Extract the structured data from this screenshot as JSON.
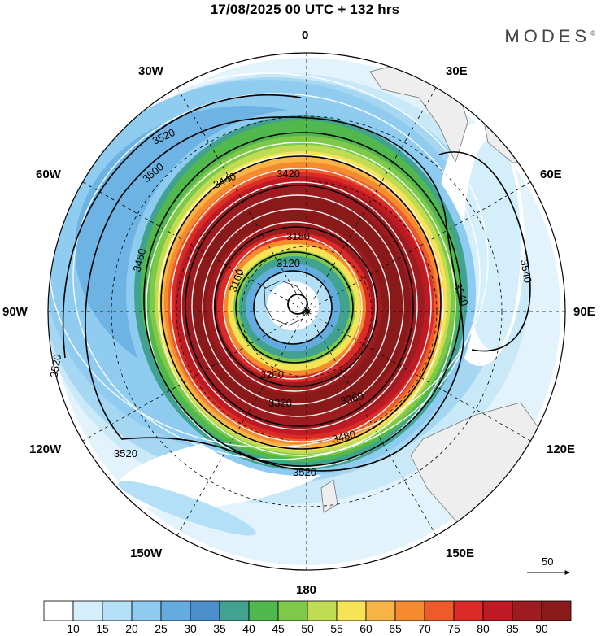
{
  "title": "17/08/2025  00 UTC  + 132 hrs",
  "brand": "MODES",
  "brand_mark": "©",
  "longitude_labels": {
    "lon_0": "0",
    "lon_30e": "30E",
    "lon_60e": "60E",
    "lon_90e": "90E",
    "lon_120e": "120E",
    "lon_150e": "150E",
    "lon_180": "180",
    "lon_150w": "150W",
    "lon_120w": "120W",
    "lon_90w": "90W",
    "lon_60w": "60W",
    "lon_30w": "30W"
  },
  "vector_reference": {
    "value": "50"
  },
  "colorbar": {
    "colors": [
      "#ffffff",
      "#d5eefb",
      "#b3e0f6",
      "#8ecbf0",
      "#64ace0",
      "#4a8fcc",
      "#41a38f",
      "#50b84c",
      "#7ec84a",
      "#c0dc52",
      "#f6e356",
      "#f9b445",
      "#f58a2f",
      "#ed5b2a",
      "#db2b28",
      "#bd1a24",
      "#9e1c20",
      "#8a1a1a"
    ],
    "labels": [
      "10",
      "15",
      "20",
      "25",
      "30",
      "35",
      "40",
      "45",
      "50",
      "55",
      "60",
      "65",
      "70",
      "75",
      "80",
      "85",
      "90"
    ]
  },
  "contours": {
    "c3120": "3120",
    "c3160": "3160",
    "c3180": "3180",
    "c3200": "3200",
    "c3320": "3320",
    "c3360": "3360",
    "c3420": "3420",
    "c3440": "3440",
    "c3460": "3460",
    "c3480": "3480",
    "c3500": "3500",
    "c3520": "3520",
    "c3540": "3540"
  }
}
